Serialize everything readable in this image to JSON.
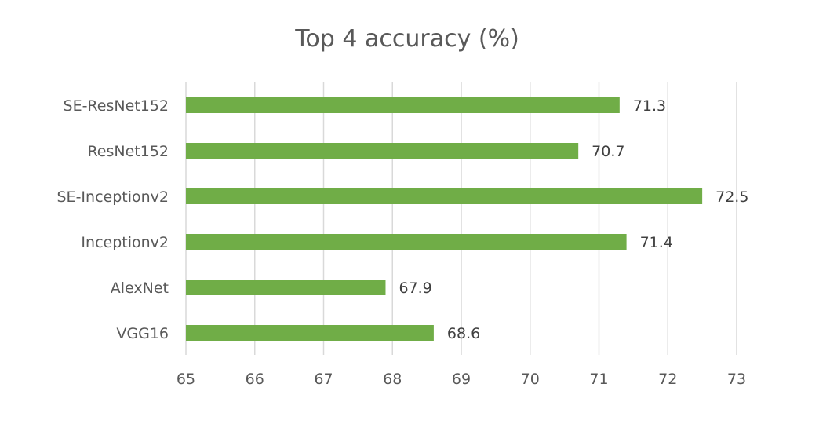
{
  "chart_data": {
    "type": "bar",
    "orientation": "horizontal",
    "title": "Top 4 accuracy (%)",
    "categories": [
      "SE-ResNet152",
      "ResNet152",
      "SE-Inceptionv2",
      "Inceptionv2",
      "AlexNet",
      "VGG16"
    ],
    "values": [
      71.3,
      70.7,
      72.5,
      71.4,
      67.9,
      68.6
    ],
    "data_labels": [
      "71.3",
      "70.7",
      "72.5",
      "71.4",
      "67.9",
      "68.6"
    ],
    "xlim": [
      65,
      73
    ],
    "xticks": [
      "65",
      "66",
      "67",
      "68",
      "69",
      "70",
      "71",
      "72",
      "73"
    ],
    "grid": true,
    "bar_color": "#70ad47",
    "grid_color": "#d9d9d9"
  }
}
